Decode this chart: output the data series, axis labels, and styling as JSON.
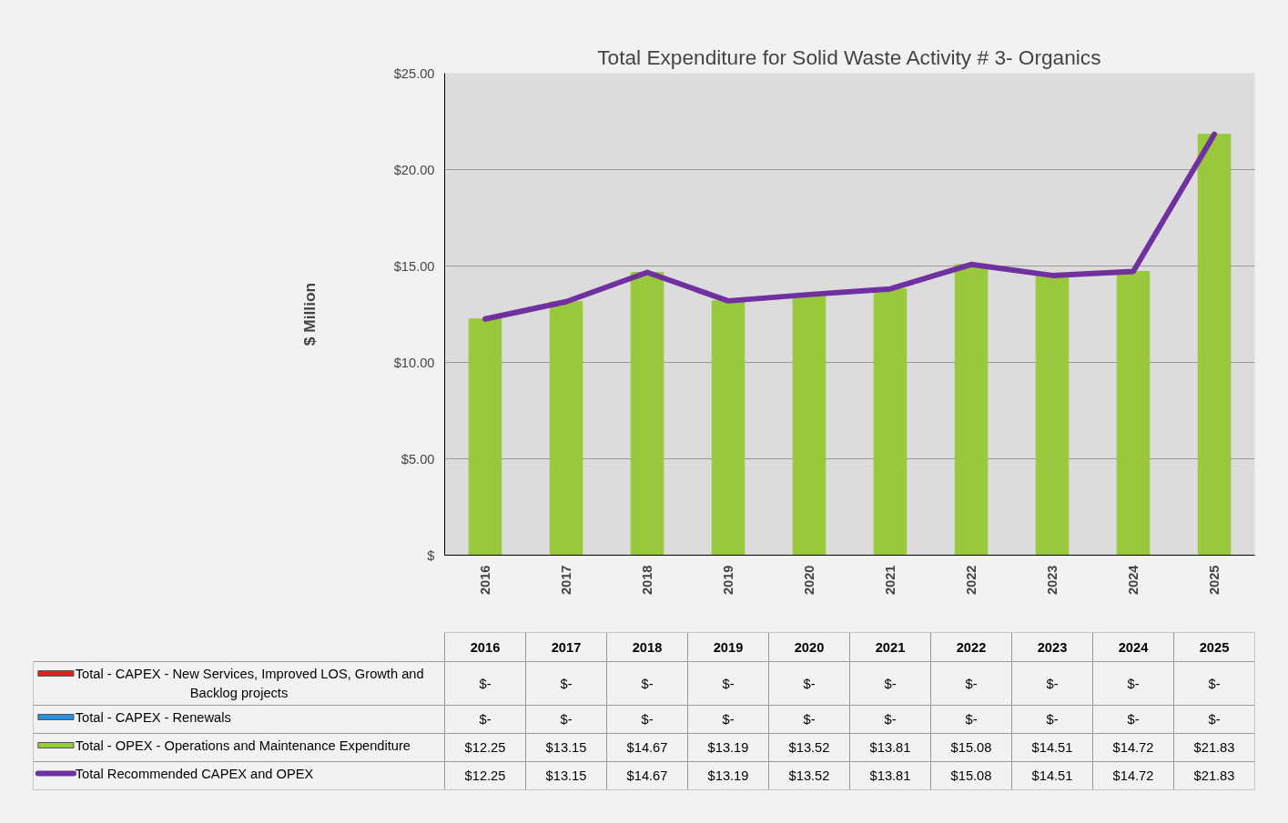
{
  "chart_data": {
    "type": "bar",
    "title": "Total Expenditure for Solid Waste Activity # 3- Organics",
    "ylabel": "$ Million",
    "categories": [
      "2016",
      "2017",
      "2018",
      "2019",
      "2020",
      "2021",
      "2022",
      "2023",
      "2024",
      "2025"
    ],
    "stacked": true,
    "grid": "y",
    "legend": "bottom left",
    "ylim": [
      0,
      25
    ],
    "yticks": [
      {
        "value": 0,
        "label": "$"
      },
      {
        "value": 5,
        "label": "$5.00"
      },
      {
        "value": 10,
        "label": "$10.00"
      },
      {
        "value": 15,
        "label": "$15.00"
      },
      {
        "value": 20,
        "label": "$20.00"
      },
      {
        "value": 25,
        "label": "$25.00"
      }
    ],
    "series": [
      {
        "name": "Total - CAPEX - New Services, Improved LOS, Growth and Backlog projects",
        "color": "#e02020",
        "values": [
          0,
          0,
          0,
          0,
          0,
          0,
          0,
          0,
          0,
          0
        ],
        "value_labels": [
          "$-",
          "$-",
          "$-",
          "$-",
          "$-",
          "$-",
          "$-",
          "$-",
          "$-",
          "$-"
        ]
      },
      {
        "name": "Total - CAPEX -  Renewals",
        "color": "#2e8fd8",
        "values": [
          0,
          0,
          0,
          0,
          0,
          0,
          0,
          0,
          0,
          0
        ],
        "value_labels": [
          "$-",
          "$-",
          "$-",
          "$-",
          "$-",
          "$-",
          "$-",
          "$-",
          "$-",
          "$-"
        ]
      },
      {
        "name": "Total - OPEX - Operations and Maintenance Expenditure",
        "color": "#9ac83c",
        "values": [
          12.25,
          13.15,
          14.67,
          13.19,
          13.52,
          13.81,
          15.08,
          14.51,
          14.72,
          21.83
        ],
        "value_labels": [
          "$12.25",
          "$13.15",
          "$14.67",
          "$13.19",
          "$13.52",
          "$13.81",
          "$15.08",
          "$14.51",
          "$14.72",
          "$21.83"
        ]
      },
      {
        "name": "Total Recommended CAPEX and OPEX",
        "type": "line",
        "color": "#7030a0",
        "values": [
          12.25,
          13.15,
          14.67,
          13.19,
          13.52,
          13.81,
          15.08,
          14.51,
          14.72,
          21.83
        ],
        "value_labels": [
          "$12.25",
          "$13.15",
          "$14.67",
          "$13.19",
          "$13.52",
          "$13.81",
          "$15.08",
          "$14.51",
          "$14.72",
          "$21.83"
        ]
      }
    ]
  }
}
